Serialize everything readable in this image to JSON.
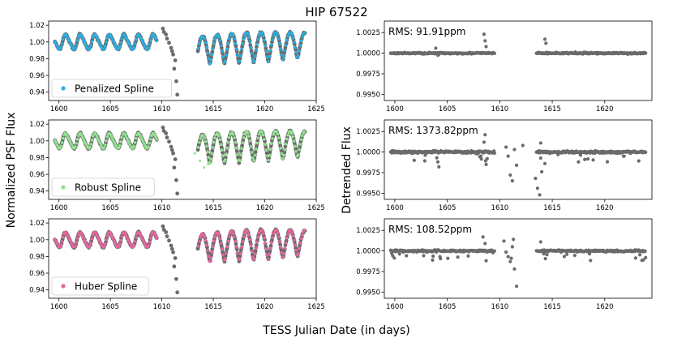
{
  "figure": {
    "title": "HIP 67522",
    "xlabel": "TESS Julian Date (in days)",
    "ylabel_left": "Normalized PSF Flux",
    "ylabel_right": "Detrended Flux"
  },
  "colors": {
    "data_gray": "#6b6b6b",
    "penalized": "#29aee3",
    "robust": "#8fe28f",
    "huber": "#e8649f"
  },
  "chart_data": [
    {
      "type": "scatter",
      "panel": "left-top",
      "xlim": [
        1599,
        1625
      ],
      "ylim": [
        0.93,
        1.025
      ],
      "xticks": [
        1600,
        1605,
        1610,
        1615,
        1620,
        1625
      ],
      "yticks": [
        0.94,
        0.96,
        0.98,
        1.0,
        1.02
      ],
      "ytick_labels": [
        "0.94",
        "0.96",
        "0.98",
        "1.00",
        "1.02"
      ],
      "legend": [
        "Penalized Spline"
      ],
      "legend_placement": "lower-left",
      "series": [
        {
          "name": "Penalized Spline",
          "color": "#29aee3"
        }
      ]
    },
    {
      "type": "scatter",
      "panel": "left-middle",
      "xlim": [
        1599,
        1625
      ],
      "ylim": [
        0.93,
        1.025
      ],
      "xticks": [
        1600,
        1605,
        1610,
        1615,
        1620,
        1625
      ],
      "yticks": [
        0.94,
        0.96,
        0.98,
        1.0,
        1.02
      ],
      "ytick_labels": [
        "0.94",
        "0.96",
        "0.98",
        "1.00",
        "1.02"
      ],
      "legend": [
        "Robust Spline"
      ],
      "legend_placement": "lower-left",
      "series": [
        {
          "name": "Robust Spline",
          "color": "#8fe28f"
        }
      ]
    },
    {
      "type": "scatter",
      "panel": "left-bottom",
      "xlim": [
        1599,
        1625
      ],
      "ylim": [
        0.93,
        1.025
      ],
      "xticks": [
        1600,
        1605,
        1610,
        1615,
        1620,
        1625
      ],
      "yticks": [
        0.94,
        0.96,
        0.98,
        1.0,
        1.02
      ],
      "ytick_labels": [
        "0.94",
        "0.96",
        "0.98",
        "1.00",
        "1.02"
      ],
      "legend": [
        "Huber Spline"
      ],
      "legend_placement": "lower-left",
      "series": [
        {
          "name": "Huber Spline",
          "color": "#e8649f"
        }
      ]
    },
    {
      "type": "scatter",
      "panel": "right-top",
      "annotation": "RMS: 91.91ppm",
      "xlim": [
        1599,
        1624.5
      ],
      "ylim": [
        0.99425,
        1.0039
      ],
      "xticks": [
        1600,
        1605,
        1610,
        1615,
        1620
      ],
      "yticks": [
        0.995,
        0.9975,
        1.0,
        1.0025
      ],
      "ytick_labels": [
        "0.9950",
        "0.9975",
        "1.0000",
        "1.0025"
      ]
    },
    {
      "type": "scatter",
      "panel": "right-middle",
      "annotation": "RMS: 1373.82ppm",
      "xlim": [
        1599,
        1624.5
      ],
      "ylim": [
        0.99425,
        1.0039
      ],
      "xticks": [
        1600,
        1605,
        1610,
        1615,
        1620
      ],
      "yticks": [
        0.995,
        0.9975,
        1.0,
        1.0025
      ],
      "ytick_labels": [
        "0.9950",
        "0.9975",
        "1.0000",
        "1.0025"
      ]
    },
    {
      "type": "scatter",
      "panel": "right-bottom",
      "annotation": "RMS: 108.52ppm",
      "xlim": [
        1599,
        1624.5
      ],
      "ylim": [
        0.99425,
        1.0039
      ],
      "xticks": [
        1600,
        1605,
        1610,
        1615,
        1620
      ],
      "yticks": [
        0.995,
        0.9975,
        1.0,
        1.0025
      ],
      "ytick_labels": [
        "0.9950",
        "0.9975",
        "1.0000",
        "1.0025"
      ]
    }
  ]
}
